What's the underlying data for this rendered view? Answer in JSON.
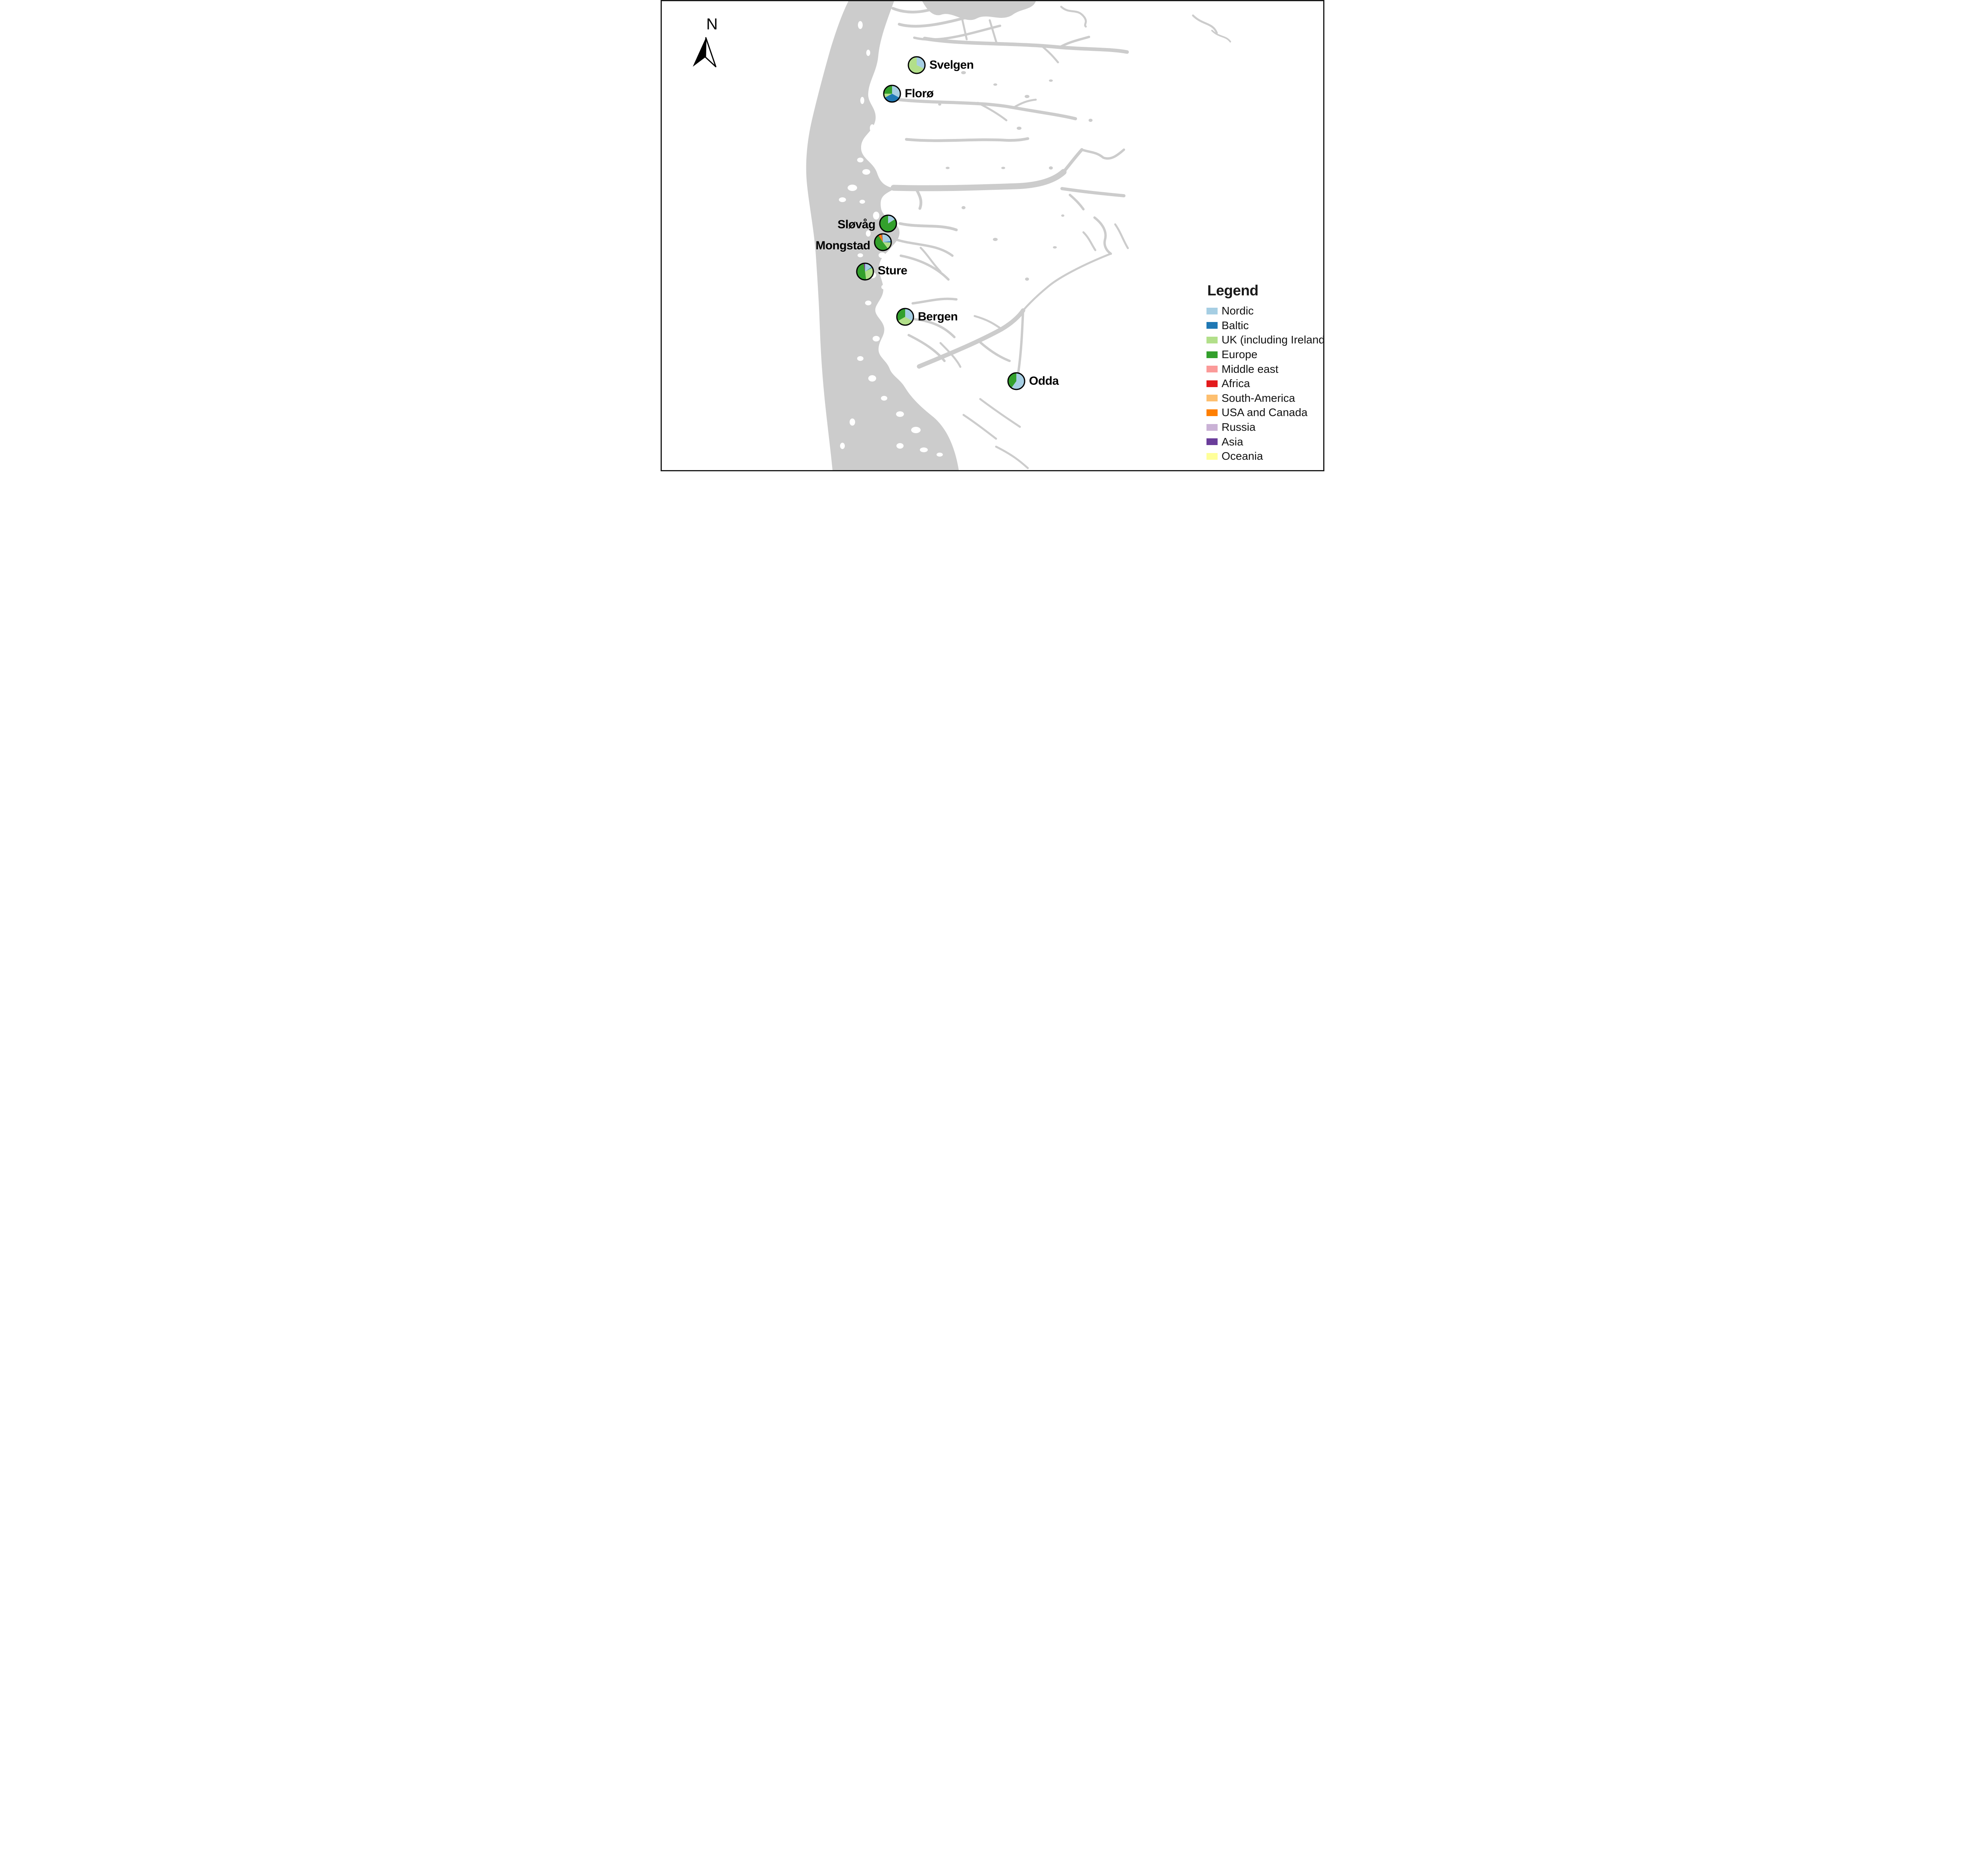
{
  "north_indicator": {
    "label": "N"
  },
  "legend": {
    "title": "Legend",
    "items": [
      {
        "label": "Nordic",
        "color": "#a6cee3"
      },
      {
        "label": "Baltic",
        "color": "#1f78b4"
      },
      {
        "label": "UK (including Ireland)",
        "color": "#b2df8a"
      },
      {
        "label": "Europe",
        "color": "#33a02c"
      },
      {
        "label": "Middle east",
        "color": "#fb9a99"
      },
      {
        "label": "Africa",
        "color": "#e31a1c"
      },
      {
        "label": "South-America",
        "color": "#fdbf6f"
      },
      {
        "label": "USA and Canada",
        "color": "#ff7f00"
      },
      {
        "label": "Russia",
        "color": "#cab2d6"
      },
      {
        "label": "Asia",
        "color": "#6a3d9a"
      },
      {
        "label": "Oceania",
        "color": "#ffff99"
      }
    ]
  },
  "map_colors": {
    "water": "#cccccc",
    "land": "#ffffff",
    "pie_outline": "#000000"
  },
  "chart_data": [
    {
      "type": "pie",
      "site": "Svelgen",
      "unit": "percent",
      "segments": [
        {
          "label": "Nordic",
          "value": 32
        },
        {
          "label": "UK (including Ireland)",
          "value": 68
        }
      ]
    },
    {
      "type": "pie",
      "site": "Florø",
      "unit": "percent",
      "segments": [
        {
          "label": "Nordic",
          "value": 33
        },
        {
          "label": "Baltic",
          "value": 34
        },
        {
          "label": "UK (including Ireland)",
          "value": 8
        },
        {
          "label": "Europe",
          "value": 25
        }
      ]
    },
    {
      "type": "pie",
      "site": "Sløvåg",
      "unit": "percent",
      "segments": [
        {
          "label": "Nordic",
          "value": 16
        },
        {
          "label": "Europe",
          "value": 84
        }
      ]
    },
    {
      "type": "pie",
      "site": "Mongstad",
      "unit": "percent",
      "segments": [
        {
          "label": "Nordic",
          "value": 23
        },
        {
          "label": "Baltic",
          "value": 2.5
        },
        {
          "label": "UK (including Ireland)",
          "value": 14
        },
        {
          "label": "Europe",
          "value": 51
        },
        {
          "label": "Africa",
          "value": 1
        },
        {
          "label": "USA and Canada",
          "value": 5.5
        },
        {
          "label": "Asia",
          "value": 2
        },
        {
          "label": "Oceania",
          "value": 1
        }
      ]
    },
    {
      "type": "pie",
      "site": "Sture",
      "unit": "percent",
      "segments": [
        {
          "label": "Nordic",
          "value": 15.5
        },
        {
          "label": "Baltic",
          "value": 1.5
        },
        {
          "label": "UK (including Ireland)",
          "value": 31
        },
        {
          "label": "Europe",
          "value": 49
        },
        {
          "label": "Africa",
          "value": 0.5
        },
        {
          "label": "Asia",
          "value": 2.5
        }
      ]
    },
    {
      "type": "pie",
      "site": "Bergen",
      "unit": "percent",
      "segments": [
        {
          "label": "Nordic",
          "value": 33.4
        },
        {
          "label": "UK (including Ireland)",
          "value": 33.3
        },
        {
          "label": "Europe",
          "value": 33.3
        }
      ]
    },
    {
      "type": "pie",
      "site": "Odda",
      "unit": "percent",
      "segments": [
        {
          "label": "Nordic",
          "value": 60
        },
        {
          "label": "Europe",
          "value": 40
        }
      ]
    }
  ]
}
